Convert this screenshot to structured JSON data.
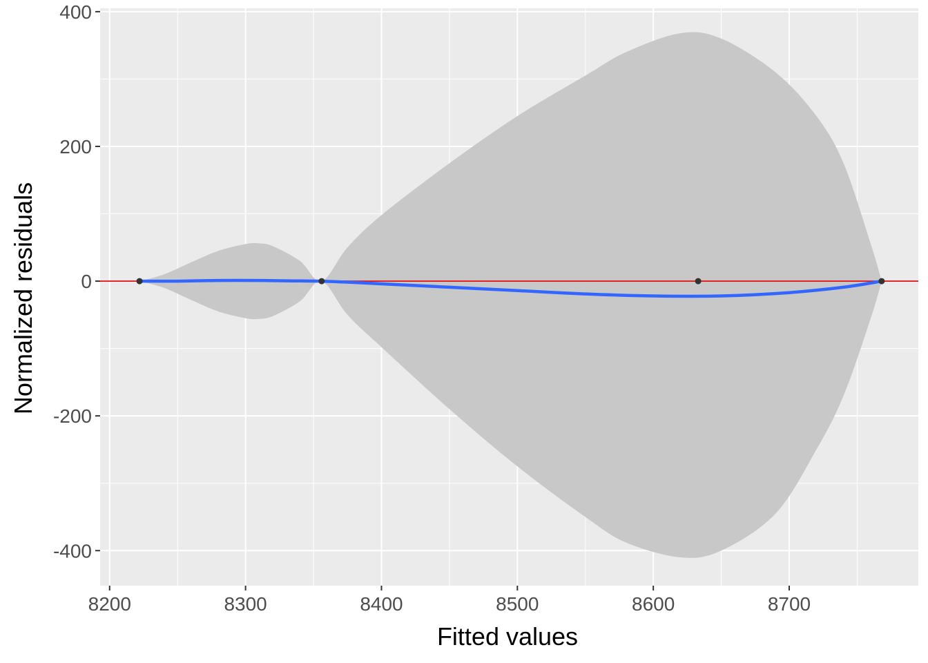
{
  "chart_data": {
    "type": "scatter",
    "title": "",
    "xlabel": "Fitted values",
    "ylabel": "Normalized residuals",
    "xlim": [
      8193,
      8795
    ],
    "ylim": [
      -452,
      405
    ],
    "x_ticks": [
      8200,
      8300,
      8400,
      8500,
      8600,
      8700
    ],
    "x_tick_labels": [
      "8200",
      "8300",
      "8400",
      "8500",
      "8600",
      "8700"
    ],
    "y_ticks": [
      400,
      200,
      0,
      -200,
      -400
    ],
    "y_tick_labels": [
      "400",
      "200",
      "0",
      "-200",
      "-400"
    ],
    "grid": true,
    "legend": "none",
    "points": {
      "x": [
        8222,
        8356,
        8633,
        8768
      ],
      "y": [
        0,
        0,
        0,
        0
      ],
      "color": "#333333"
    },
    "reference_line": {
      "y": 0,
      "color": "#e31a1c"
    },
    "smooth": {
      "color": "#3366ff",
      "x": [
        8222,
        8250,
        8280,
        8310,
        8330,
        8356,
        8380,
        8400,
        8450,
        8500,
        8550,
        8600,
        8650,
        8700,
        8740,
        8768
      ],
      "y": [
        0,
        0,
        1,
        1,
        0.5,
        0,
        -2,
        -4,
        -9,
        -14,
        -19,
        -22,
        -22,
        -17,
        -9,
        0
      ]
    },
    "confidence_band": {
      "color": "#c8c8c8",
      "x": [
        8222,
        8240,
        8260,
        8280,
        8300,
        8310,
        8320,
        8340,
        8356,
        8375,
        8400,
        8450,
        8500,
        8550,
        8580,
        8620,
        8650,
        8690,
        8720,
        8740,
        8760,
        8768
      ],
      "upper": [
        0,
        10,
        28,
        45,
        55,
        56,
        52,
        30,
        0,
        50,
        98,
        175,
        245,
        305,
        340,
        368,
        360,
        310,
        245,
        175,
        55,
        0
      ],
      "lower": [
        0,
        -10,
        -28,
        -45,
        -55,
        -56,
        -52,
        -30,
        0,
        -50,
        -98,
        -190,
        -275,
        -350,
        -388,
        -410,
        -400,
        -345,
        -250,
        -170,
        -55,
        0
      ]
    }
  }
}
